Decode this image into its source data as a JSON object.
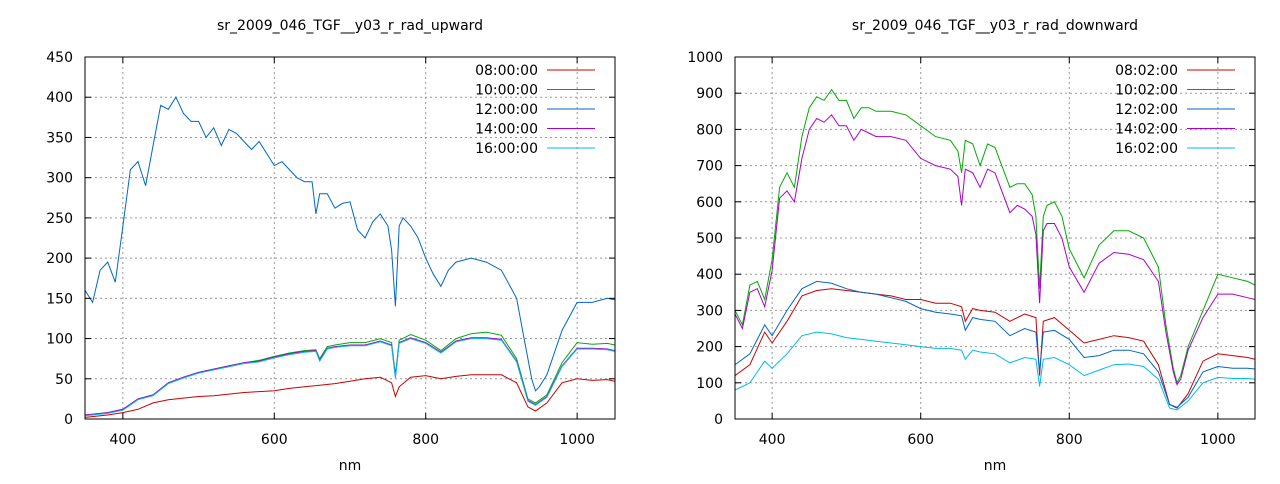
{
  "chart_data": [
    {
      "type": "line",
      "title": "sr_2009_046_TGF__y03_r_rad_upward",
      "xlabel": "nm",
      "ylabel": "",
      "xlim": [
        350,
        1050
      ],
      "ylim": [
        0,
        450
      ],
      "xticks": [
        400,
        600,
        800,
        1000
      ],
      "yticks": [
        0,
        50,
        100,
        150,
        200,
        250,
        300,
        350,
        400,
        450
      ],
      "grid": true,
      "legend_position": "top-right",
      "series": [
        {
          "name": "08:00:00",
          "color": "#cc0000",
          "x": [
            350,
            380,
            400,
            420,
            440,
            460,
            480,
            500,
            520,
            540,
            560,
            580,
            600,
            620,
            640,
            660,
            680,
            700,
            720,
            740,
            755,
            760,
            765,
            780,
            800,
            820,
            840,
            860,
            880,
            900,
            920,
            935,
            945,
            960,
            980,
            1000,
            1020,
            1040,
            1050
          ],
          "y": [
            2,
            5,
            8,
            12,
            20,
            24,
            26,
            28,
            29,
            31,
            33,
            34,
            35,
            38,
            40,
            42,
            44,
            47,
            50,
            52,
            45,
            28,
            40,
            52,
            54,
            50,
            53,
            55,
            55,
            55,
            45,
            15,
            10,
            20,
            45,
            50,
            48,
            49,
            47
          ]
        },
        {
          "name": "10:00:00",
          "color": "#00aa00",
          "x": [
            350,
            380,
            400,
            420,
            440,
            460,
            480,
            500,
            520,
            540,
            560,
            580,
            600,
            620,
            640,
            655,
            660,
            670,
            680,
            700,
            720,
            740,
            755,
            760,
            765,
            780,
            800,
            820,
            840,
            860,
            880,
            900,
            920,
            935,
            945,
            960,
            980,
            1000,
            1020,
            1040,
            1050
          ],
          "y": [
            5,
            8,
            12,
            25,
            30,
            45,
            52,
            58,
            62,
            66,
            70,
            73,
            78,
            82,
            85,
            86,
            75,
            90,
            92,
            95,
            95,
            100,
            95,
            55,
            98,
            105,
            98,
            85,
            100,
            106,
            108,
            104,
            75,
            25,
            20,
            30,
            70,
            95,
            93,
            94,
            92
          ]
        },
        {
          "name": "12:00:00",
          "color": "#0066cc",
          "x": [
            350,
            360,
            370,
            380,
            390,
            400,
            410,
            420,
            430,
            440,
            450,
            460,
            470,
            480,
            490,
            500,
            510,
            520,
            530,
            540,
            550,
            560,
            570,
            580,
            590,
            600,
            610,
            620,
            630,
            640,
            650,
            655,
            660,
            670,
            680,
            690,
            700,
            710,
            720,
            730,
            740,
            750,
            755,
            760,
            765,
            770,
            780,
            790,
            800,
            810,
            820,
            830,
            840,
            860,
            880,
            900,
            920,
            930,
            940,
            945,
            950,
            960,
            980,
            1000,
            1020,
            1040,
            1050
          ],
          "y": [
            160,
            145,
            185,
            195,
            170,
            240,
            310,
            320,
            290,
            340,
            390,
            385,
            400,
            380,
            370,
            370,
            350,
            362,
            340,
            360,
            355,
            345,
            335,
            345,
            330,
            315,
            320,
            310,
            300,
            295,
            295,
            255,
            280,
            280,
            262,
            268,
            270,
            235,
            225,
            245,
            255,
            240,
            210,
            140,
            240,
            250,
            240,
            225,
            200,
            180,
            165,
            185,
            195,
            200,
            195,
            185,
            150,
            100,
            50,
            35,
            40,
            55,
            110,
            145,
            145,
            150,
            148
          ]
        },
        {
          "name": "14:00:00",
          "color": "#aa00cc",
          "x": [
            350,
            380,
            400,
            420,
            440,
            460,
            480,
            500,
            520,
            540,
            560,
            580,
            600,
            620,
            640,
            655,
            660,
            670,
            680,
            700,
            720,
            740,
            755,
            760,
            765,
            780,
            800,
            820,
            840,
            860,
            880,
            900,
            920,
            935,
            945,
            960,
            980,
            1000,
            1020,
            1040,
            1050
          ],
          "y": [
            5,
            8,
            12,
            25,
            30,
            45,
            52,
            58,
            62,
            66,
            70,
            72,
            77,
            81,
            84,
            85,
            73,
            88,
            90,
            92,
            92,
            97,
            92,
            52,
            95,
            101,
            95,
            83,
            97,
            101,
            101,
            99,
            72,
            23,
            18,
            28,
            66,
            88,
            88,
            87,
            85
          ]
        },
        {
          "name": "16:00:00",
          "color": "#00bbee",
          "x": [
            350,
            380,
            400,
            420,
            440,
            460,
            480,
            500,
            520,
            540,
            560,
            580,
            600,
            620,
            640,
            655,
            660,
            670,
            680,
            700,
            720,
            740,
            755,
            760,
            765,
            780,
            800,
            820,
            840,
            860,
            880,
            900,
            920,
            935,
            945,
            960,
            980,
            1000,
            1020,
            1040,
            1050
          ],
          "y": [
            4,
            7,
            11,
            24,
            29,
            44,
            51,
            57,
            61,
            65,
            69,
            71,
            76,
            80,
            83,
            84,
            72,
            87,
            89,
            91,
            91,
            96,
            91,
            51,
            94,
            100,
            94,
            82,
            96,
            100,
            100,
            98,
            71,
            22,
            17,
            27,
            65,
            87,
            87,
            86,
            84
          ]
        }
      ]
    },
    {
      "type": "line",
      "title": "sr_2009_046_TGF__y03_r_rad_downward",
      "xlabel": "nm",
      "ylabel": "",
      "xlim": [
        350,
        1050
      ],
      "ylim": [
        0,
        1000
      ],
      "xticks": [
        400,
        600,
        800,
        1000
      ],
      "yticks": [
        0,
        100,
        200,
        300,
        400,
        500,
        600,
        700,
        800,
        900,
        1000
      ],
      "grid": true,
      "legend_position": "top-right",
      "series": [
        {
          "name": "08:02:00",
          "color": "#cc0000",
          "x": [
            350,
            370,
            390,
            400,
            420,
            440,
            460,
            480,
            500,
            520,
            540,
            560,
            580,
            600,
            620,
            640,
            655,
            660,
            670,
            680,
            700,
            720,
            740,
            755,
            760,
            765,
            780,
            800,
            820,
            840,
            860,
            880,
            900,
            920,
            935,
            945,
            960,
            980,
            1000,
            1020,
            1040,
            1050
          ],
          "y": [
            120,
            150,
            240,
            210,
            270,
            340,
            355,
            360,
            355,
            350,
            345,
            340,
            330,
            330,
            320,
            320,
            310,
            270,
            305,
            300,
            295,
            270,
            290,
            280,
            120,
            270,
            280,
            245,
            210,
            220,
            230,
            225,
            215,
            150,
            40,
            30,
            70,
            160,
            180,
            175,
            170,
            165
          ]
        },
        {
          "name": "10:02:00",
          "color": "#00aa00",
          "x": [
            350,
            360,
            370,
            380,
            390,
            400,
            410,
            420,
            430,
            440,
            450,
            460,
            470,
            480,
            490,
            500,
            510,
            520,
            530,
            540,
            560,
            580,
            600,
            620,
            640,
            650,
            655,
            660,
            670,
            680,
            690,
            700,
            720,
            730,
            740,
            750,
            755,
            760,
            765,
            770,
            780,
            790,
            800,
            820,
            840,
            860,
            880,
            900,
            920,
            930,
            940,
            945,
            950,
            960,
            980,
            1000,
            1020,
            1040,
            1050
          ],
          "y": [
            300,
            260,
            370,
            380,
            330,
            440,
            640,
            680,
            640,
            780,
            860,
            890,
            880,
            910,
            880,
            880,
            830,
            860,
            860,
            850,
            850,
            840,
            810,
            780,
            770,
            740,
            680,
            770,
            760,
            700,
            760,
            750,
            640,
            650,
            650,
            620,
            560,
            360,
            560,
            590,
            600,
            560,
            470,
            390,
            480,
            520,
            520,
            500,
            420,
            260,
            140,
            100,
            120,
            200,
            300,
            400,
            390,
            380,
            370
          ]
        },
        {
          "name": "12:02:00",
          "color": "#0066cc",
          "x": [
            350,
            370,
            390,
            400,
            420,
            440,
            460,
            480,
            500,
            520,
            540,
            560,
            580,
            600,
            620,
            640,
            655,
            660,
            670,
            680,
            700,
            720,
            740,
            755,
            760,
            765,
            780,
            800,
            820,
            840,
            860,
            880,
            900,
            920,
            935,
            945,
            960,
            980,
            1000,
            1020,
            1040,
            1050
          ],
          "y": [
            150,
            180,
            260,
            230,
            300,
            360,
            380,
            375,
            360,
            350,
            345,
            335,
            325,
            305,
            295,
            290,
            285,
            245,
            280,
            275,
            270,
            230,
            250,
            240,
            130,
            240,
            245,
            220,
            170,
            175,
            190,
            190,
            180,
            130,
            40,
            32,
            60,
            130,
            145,
            140,
            140,
            138
          ]
        },
        {
          "name": "14:02:00",
          "color": "#aa00cc",
          "x": [
            350,
            360,
            370,
            380,
            390,
            400,
            410,
            420,
            430,
            440,
            450,
            460,
            470,
            480,
            490,
            500,
            510,
            520,
            530,
            540,
            560,
            580,
            600,
            620,
            640,
            650,
            655,
            660,
            670,
            680,
            690,
            700,
            720,
            730,
            740,
            750,
            755,
            760,
            765,
            770,
            780,
            790,
            800,
            820,
            840,
            860,
            880,
            900,
            920,
            930,
            940,
            945,
            950,
            960,
            980,
            1000,
            1020,
            1040,
            1050
          ],
          "y": [
            290,
            250,
            350,
            360,
            310,
            410,
            610,
            630,
            600,
            720,
            800,
            830,
            820,
            840,
            810,
            810,
            770,
            800,
            790,
            780,
            780,
            770,
            720,
            700,
            690,
            670,
            590,
            690,
            680,
            640,
            690,
            680,
            570,
            590,
            580,
            560,
            510,
            320,
            520,
            540,
            540,
            500,
            420,
            350,
            430,
            460,
            455,
            440,
            380,
            240,
            130,
            95,
            110,
            190,
            280,
            345,
            345,
            335,
            330
          ]
        },
        {
          "name": "16:02:00",
          "color": "#00bbee",
          "x": [
            350,
            370,
            390,
            400,
            420,
            440,
            460,
            480,
            500,
            520,
            540,
            560,
            580,
            600,
            620,
            640,
            655,
            660,
            670,
            680,
            700,
            720,
            740,
            755,
            760,
            765,
            780,
            800,
            820,
            840,
            860,
            880,
            900,
            920,
            935,
            945,
            960,
            980,
            1000,
            1020,
            1040,
            1050
          ],
          "y": [
            80,
            100,
            160,
            140,
            180,
            230,
            240,
            235,
            225,
            220,
            215,
            210,
            205,
            200,
            195,
            195,
            190,
            165,
            190,
            185,
            180,
            155,
            170,
            165,
            90,
            165,
            170,
            150,
            120,
            135,
            150,
            152,
            145,
            110,
            30,
            25,
            50,
            100,
            115,
            112,
            112,
            110
          ]
        }
      ]
    }
  ]
}
